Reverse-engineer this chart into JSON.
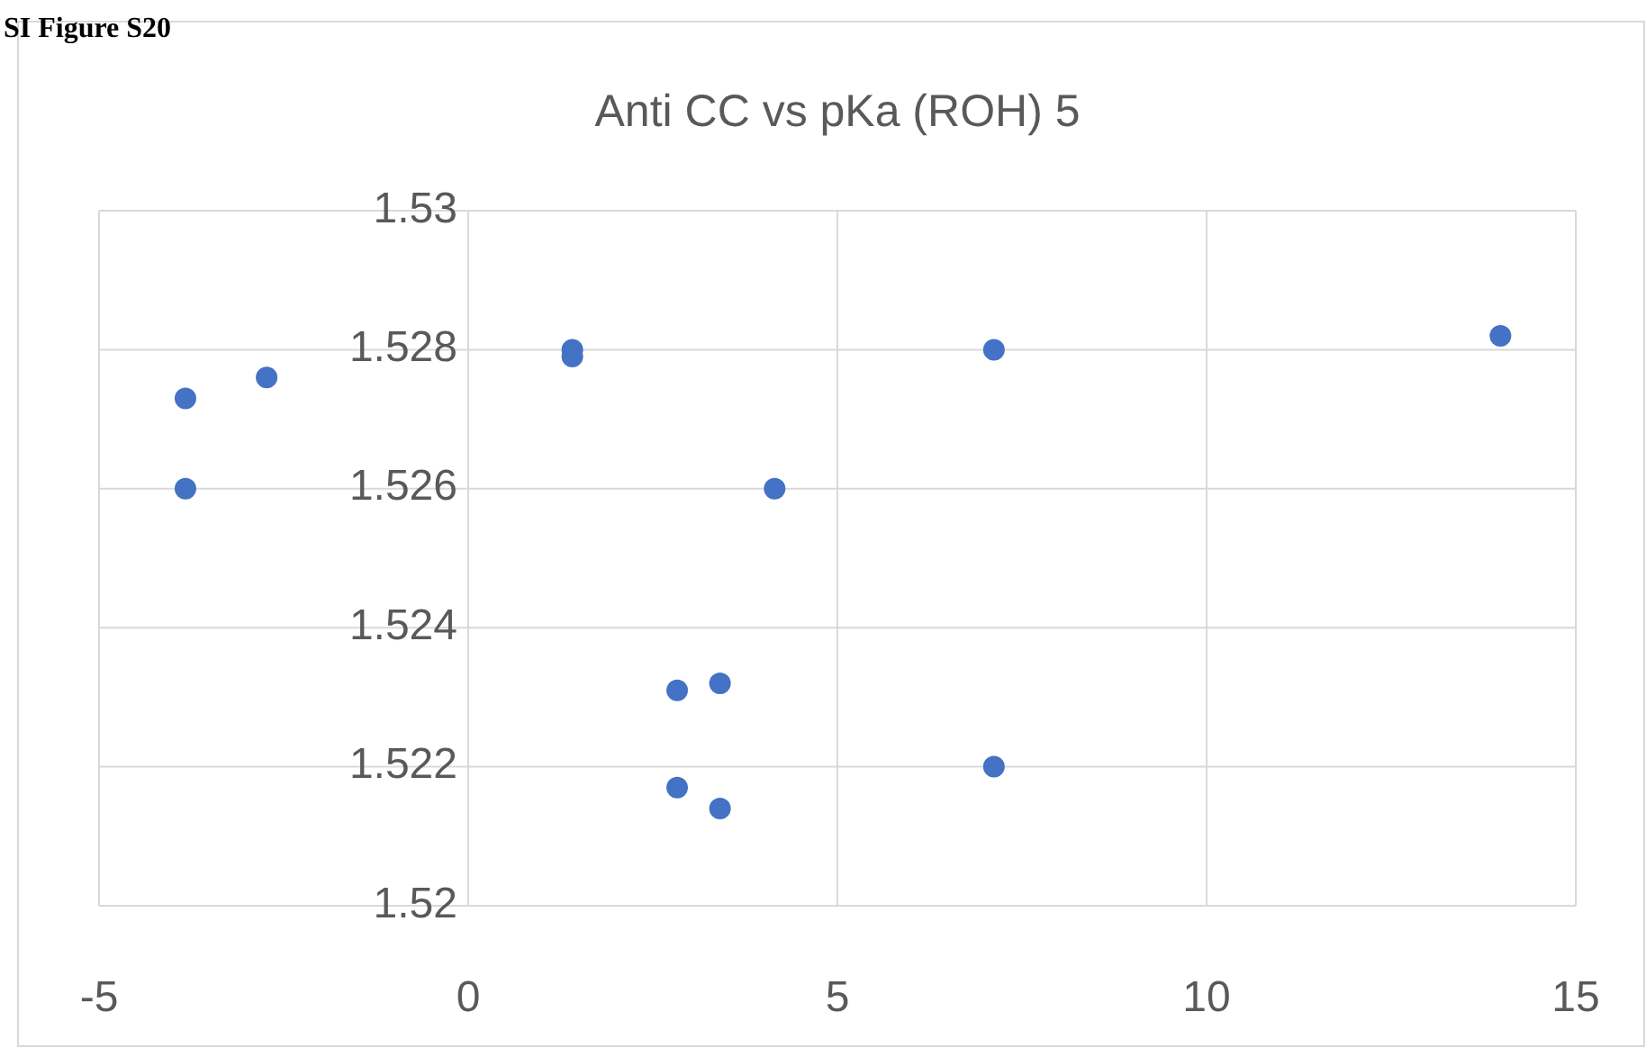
{
  "chart_data": {
    "type": "scatter",
    "title": "Anti CC vs pKa (ROH)  5",
    "annotations": [
      "SI Figure S20"
    ],
    "x": [
      -3.83,
      -3.83,
      -2.73,
      1.41,
      1.41,
      7.12,
      13.98,
      4.15,
      2.83,
      3.41,
      2.83,
      3.41,
      7.12
    ],
    "series": [
      {
        "color": "#4472c4",
        "values": [
          1.5273,
          1.526,
          1.5276,
          1.528,
          1.5279,
          1.528,
          1.5282,
          1.526,
          1.5231,
          1.5232,
          1.5217,
          1.5214,
          1.522
        ]
      }
    ],
    "xlim": [
      -5,
      15
    ],
    "xticks": [
      -5,
      0,
      5,
      10,
      15
    ],
    "ylim": [
      1.52,
      1.53
    ],
    "yticks": [
      1.52,
      1.522,
      1.524,
      1.526,
      1.528,
      1.53
    ],
    "grid": true,
    "marker": "circle"
  }
}
